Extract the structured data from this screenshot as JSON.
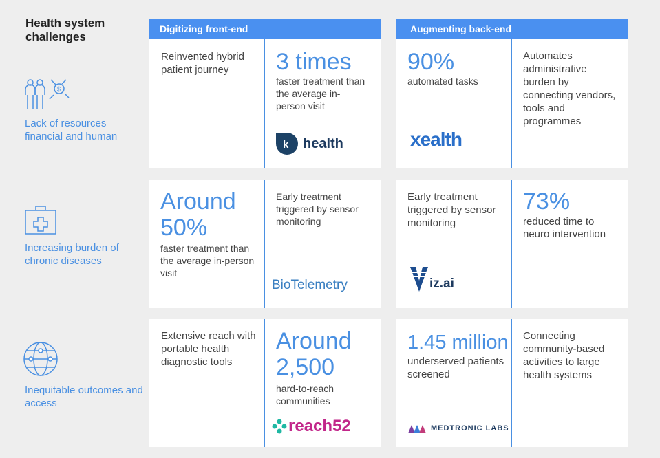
{
  "title": "Health system challenges",
  "headers": {
    "front": "Digitizing front-end",
    "back": "Augmenting back-end"
  },
  "rows": [
    {
      "label": "Lack of resources financial and human",
      "front_left": "Reinvented hybrid patient journey",
      "front_right_big": "3 times",
      "front_right_small": "faster treatment than the average in-person visit",
      "front_logo": "health",
      "back_left_big": "90%",
      "back_left_small": "automated tasks",
      "back_logo": "xealth",
      "back_right": "Automates administrative burden by connecting vendors, tools and programmes"
    },
    {
      "label": "Increasing burden of chronic diseases",
      "front_left_big": "Around 50%",
      "front_left_small": "faster treatment than the average in-person visit",
      "front_right": "Early treatment triggered by sensor monitoring",
      "front_logo": "BioTelemetry",
      "back_left": "Early treatment triggered by sensor monitoring",
      "back_logo": "iz.ai",
      "back_right_big": "73%",
      "back_right_small": "reduced time to neuro intervention"
    },
    {
      "label": "Inequitable outcomes and access",
      "front_left": "Extensive reach with portable health diagnostic tools",
      "front_right_big": "Around 2,500",
      "front_right_small": "hard-to-reach communities",
      "front_logo": "reach52",
      "back_left_big": "1.45 million",
      "back_left_small": "underserved patients screened",
      "back_logo": "MEDTRONIC LABS",
      "back_right": "Connecting community-based activities to large health systems"
    }
  ],
  "colors": {
    "accent": "#4a90e2",
    "header": "#4a90f0",
    "bg": "#eeeeee"
  }
}
